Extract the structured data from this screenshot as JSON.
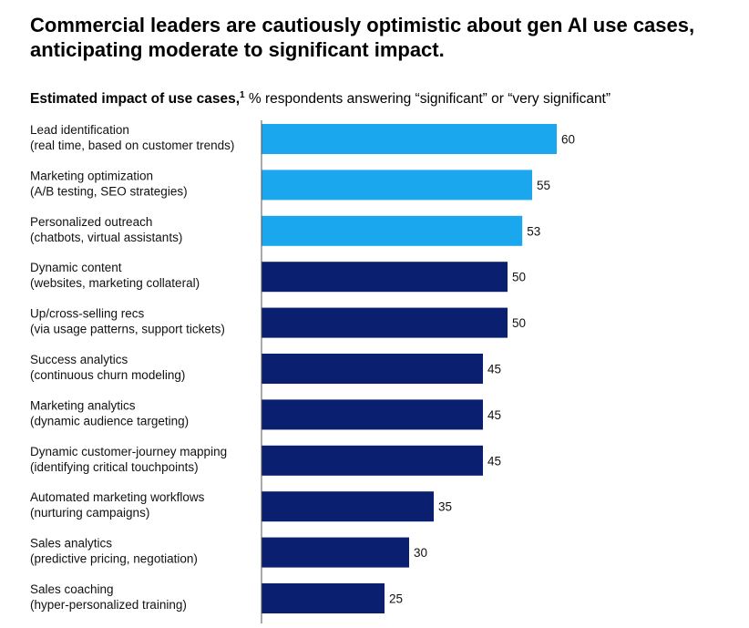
{
  "title": "Commercial leaders are cautiously optimistic about gen AI use cases, anticipating moderate to significant impact.",
  "subtitle": {
    "bold": "Estimated impact of use cases,",
    "footnote_marker": "1",
    "rest": " % respondents answering “significant” or “very significant”"
  },
  "colors": {
    "highlight": "#1aa7ee",
    "default": "#0a1f6f",
    "axis": "#555555"
  },
  "chart_data": {
    "type": "bar",
    "orientation": "horizontal",
    "categories": [
      [
        "Lead identification",
        "(real time, based on customer trends)"
      ],
      [
        "Marketing optimization",
        "(A/B testing, SEO strategies)"
      ],
      [
        "Personalized outreach",
        "(chatbots, virtual assistants)"
      ],
      [
        "Dynamic content",
        "(websites, marketing collateral)"
      ],
      [
        "Up/cross-selling recs",
        "(via usage patterns, support tickets)"
      ],
      [
        "Success analytics",
        "(continuous churn modeling)"
      ],
      [
        "Marketing analytics",
        "(dynamic audience targeting)"
      ],
      [
        "Dynamic customer-journey mapping",
        "(identifying critical touchpoints)"
      ],
      [
        "Automated marketing workflows",
        "(nurturing campaigns)"
      ],
      [
        "Sales analytics",
        "(predictive pricing, negotiation)"
      ],
      [
        "Sales coaching",
        "(hyper-personalized training)"
      ]
    ],
    "values": [
      60,
      55,
      53,
      50,
      50,
      45,
      45,
      45,
      35,
      30,
      25
    ],
    "highlighted": [
      true,
      true,
      true,
      false,
      false,
      false,
      false,
      false,
      false,
      false,
      false
    ],
    "xlim": [
      0,
      60
    ],
    "grid": false,
    "legend": "none"
  }
}
